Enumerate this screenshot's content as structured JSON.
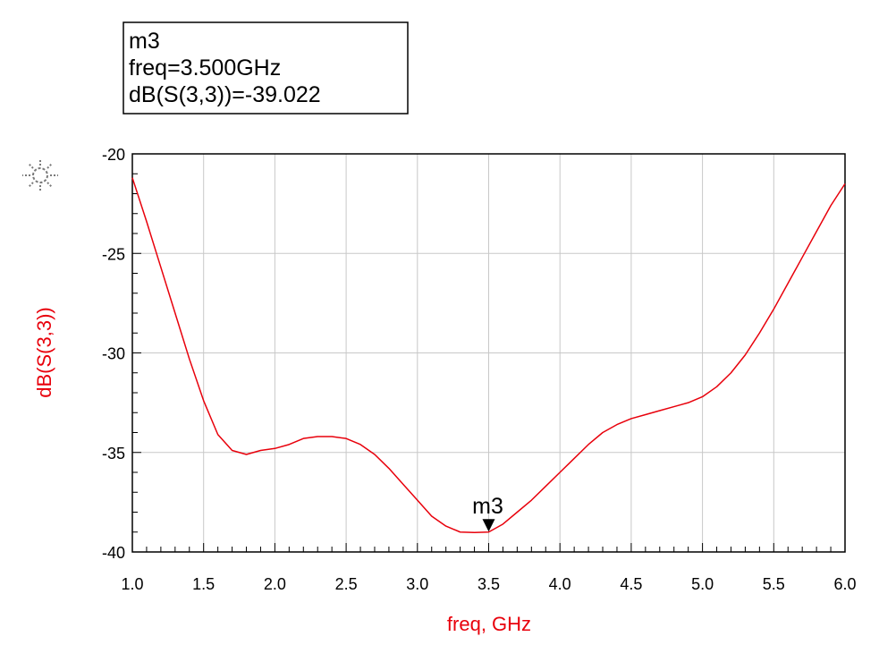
{
  "marker_box": {
    "name": "m3",
    "freq_line": "freq=3.500GHz",
    "value_line": "dB(S(3,3))=-39.022"
  },
  "icons": {
    "settings": "sun-settings-icon"
  },
  "colors": {
    "trace": "#e8000b",
    "grid": "#c8c8c8",
    "axis_title": "#e8000b"
  },
  "chart_data": {
    "type": "line",
    "title": "",
    "xlabel": "freq, GHz",
    "ylabel": "dB(S(3,3))",
    "xlim": [
      1.0,
      6.0
    ],
    "ylim": [
      -40,
      -20
    ],
    "x_ticks": [
      "1.0",
      "1.5",
      "2.0",
      "2.5",
      "3.0",
      "3.5",
      "4.0",
      "4.5",
      "5.0",
      "5.5",
      "6.0"
    ],
    "y_ticks": [
      "-20",
      "-25",
      "-30",
      "-35",
      "-40"
    ],
    "grid": true,
    "legend": "none",
    "series": [
      {
        "x": [
          1.0,
          1.1,
          1.2,
          1.3,
          1.4,
          1.5,
          1.6,
          1.7,
          1.8,
          1.9,
          2.0,
          2.1,
          2.2,
          2.3,
          2.4,
          2.5,
          2.6,
          2.7,
          2.8,
          2.9,
          3.0,
          3.1,
          3.2,
          3.3,
          3.4,
          3.5,
          3.6,
          3.7,
          3.8,
          3.9,
          4.0,
          4.1,
          4.2,
          4.3,
          4.4,
          4.5,
          4.6,
          4.7,
          4.8,
          4.9,
          5.0,
          5.1,
          5.2,
          5.3,
          5.4,
          5.5,
          5.6,
          5.7,
          5.8,
          5.9,
          6.0
        ],
        "y": [
          -21.2,
          -23.4,
          -25.7,
          -28.0,
          -30.3,
          -32.4,
          -34.1,
          -34.9,
          -35.1,
          -34.9,
          -34.8,
          -34.6,
          -34.3,
          -34.2,
          -34.2,
          -34.3,
          -34.6,
          -35.1,
          -35.8,
          -36.6,
          -37.4,
          -38.2,
          -38.7,
          -39.0,
          -39.022,
          -39.0,
          -38.6,
          -38.0,
          -37.4,
          -36.7,
          -36.0,
          -35.3,
          -34.6,
          -34.0,
          -33.6,
          -33.3,
          -33.1,
          -32.9,
          -32.7,
          -32.5,
          -32.2,
          -31.7,
          -31.0,
          -30.1,
          -29.0,
          -27.8,
          -26.5,
          -25.2,
          -23.9,
          -22.6,
          -21.5
        ]
      }
    ],
    "markers": [
      {
        "name": "m3",
        "x": 3.5,
        "y": -39.022
      }
    ]
  }
}
